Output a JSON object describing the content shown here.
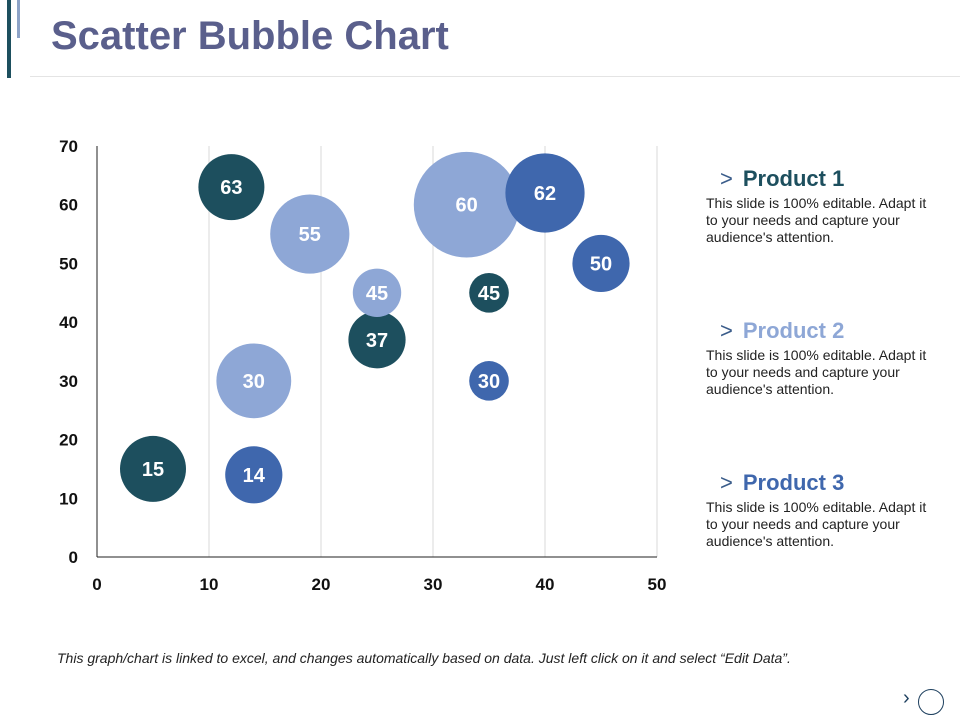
{
  "title": "Scatter Bubble Chart",
  "colors": {
    "product1": "#1d4f5e",
    "product2": "#8ea7d6",
    "product3": "#3f67ad",
    "grid": "#d9d9d9",
    "axis": "#222222"
  },
  "chart_data": {
    "type": "scatter",
    "title": "",
    "xlabel": "",
    "ylabel": "",
    "xlim": [
      0,
      50
    ],
    "ylim": [
      0,
      70
    ],
    "x_ticks": [
      0,
      10,
      20,
      30,
      40,
      50
    ],
    "y_ticks": [
      0,
      10,
      20,
      30,
      40,
      50,
      60,
      70
    ],
    "grid": "vertical",
    "series": [
      {
        "name": "Product 1",
        "color": "#1d4f5e",
        "points": [
          {
            "x": 5,
            "y": 15,
            "size": 15,
            "label": "15"
          },
          {
            "x": 12,
            "y": 63,
            "size": 15,
            "label": "63"
          },
          {
            "x": 25,
            "y": 37,
            "size": 13,
            "label": "37"
          },
          {
            "x": 35,
            "y": 45,
            "size": 9,
            "label": "45"
          }
        ]
      },
      {
        "name": "Product 2",
        "color": "#8ea7d6",
        "points": [
          {
            "x": 14,
            "y": 30,
            "size": 17,
            "label": "30"
          },
          {
            "x": 19,
            "y": 55,
            "size": 18,
            "label": "55"
          },
          {
            "x": 25,
            "y": 45,
            "size": 11,
            "label": "45"
          },
          {
            "x": 33,
            "y": 60,
            "size": 24,
            "label": "60"
          }
        ]
      },
      {
        "name": "Product 3",
        "color": "#3f67ad",
        "points": [
          {
            "x": 14,
            "y": 14,
            "size": 13,
            "label": "14"
          },
          {
            "x": 35,
            "y": 30,
            "size": 9,
            "label": "30"
          },
          {
            "x": 40,
            "y": 62,
            "size": 18,
            "label": "62"
          },
          {
            "x": 45,
            "y": 50,
            "size": 13,
            "label": "50"
          }
        ]
      }
    ]
  },
  "legend": [
    {
      "name": "Product 1",
      "color": "#1d4f5e",
      "description": "This slide is 100% editable. Adapt it to your needs and capture your audience's attention."
    },
    {
      "name": "Product 2",
      "color": "#8ea7d6",
      "description": "This slide is 100% editable. Adapt it to your needs and capture your audience's attention."
    },
    {
      "name": "Product 3",
      "color": "#3f67ad",
      "description": "This slide is 100% editable. Adapt it to your needs and capture your audience's attention."
    }
  ],
  "legend_chevron": ">",
  "footnote": "This graph/chart is linked to excel, and changes automatically based on data. Just left click on it and select “Edit Data”.",
  "nav": {
    "next_label": "›"
  }
}
